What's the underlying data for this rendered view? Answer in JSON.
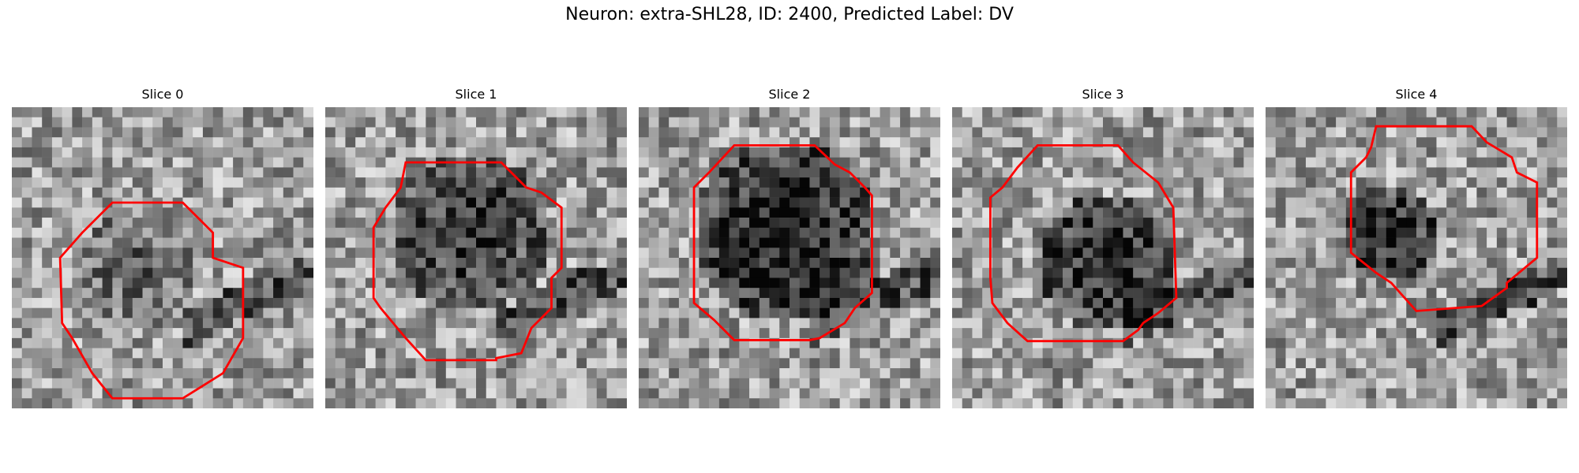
{
  "figure": {
    "title": "Neuron: extra-SHL28, ID: 2400, Predicted Label: DV"
  },
  "colors": {
    "contour": "#ff0000",
    "background": "#ffffff"
  },
  "panels": [
    {
      "title": "Slice 0",
      "seed": 11,
      "dark_center": [
        12,
        16
      ],
      "dark_radius": 6,
      "darkness": 0.25,
      "stripe": true
    },
    {
      "title": "Slice 1",
      "seed": 23,
      "dark_center": [
        14,
        12
      ],
      "dark_radius": 8,
      "darkness": 0.45,
      "stripe": true
    },
    {
      "title": "Slice 2",
      "seed": 37,
      "dark_center": [
        14,
        12
      ],
      "dark_radius": 9,
      "darkness": 0.6,
      "stripe": true
    },
    {
      "title": "Slice 3",
      "seed": 41,
      "dark_center": [
        15,
        15
      ],
      "dark_radius": 7,
      "darkness": 0.55,
      "stripe": true
    },
    {
      "title": "Slice 4",
      "seed": 53,
      "dark_center": [
        12,
        12
      ],
      "dark_radius": 5,
      "darkness": 0.55,
      "stripe": true
    }
  ]
}
